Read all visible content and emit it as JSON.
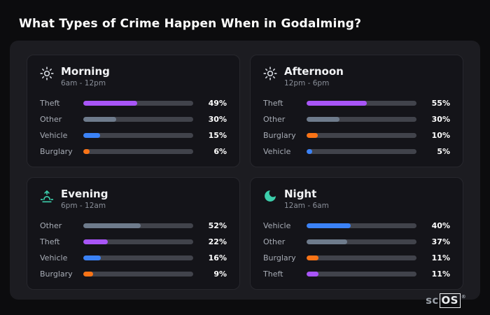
{
  "page": {
    "title": "What Types of Crime Happen When in Godalming?"
  },
  "colors": {
    "theft": "#a855f7",
    "other": "#6e7b8c",
    "vehicle": "#3b82f6",
    "burglary": "#f97316"
  },
  "chart_data": [
    {
      "type": "bar",
      "title": "Morning",
      "subtitle": "6am - 12pm",
      "icon": "sun-icon",
      "categories": [
        "Theft",
        "Other",
        "Vehicle",
        "Burglary"
      ],
      "values": [
        49,
        30,
        15,
        6
      ],
      "value_unit": "%",
      "xlim": [
        0,
        100
      ]
    },
    {
      "type": "bar",
      "title": "Afternoon",
      "subtitle": "12pm - 6pm",
      "icon": "sun-icon",
      "categories": [
        "Theft",
        "Other",
        "Burglary",
        "Vehicle"
      ],
      "values": [
        55,
        30,
        10,
        5
      ],
      "value_unit": "%",
      "xlim": [
        0,
        100
      ]
    },
    {
      "type": "bar",
      "title": "Evening",
      "subtitle": "6pm - 12am",
      "icon": "sunset-icon",
      "categories": [
        "Other",
        "Theft",
        "Vehicle",
        "Burglary"
      ],
      "values": [
        52,
        22,
        16,
        9
      ],
      "value_unit": "%",
      "xlim": [
        0,
        100
      ]
    },
    {
      "type": "bar",
      "title": "Night",
      "subtitle": "12am - 6am",
      "icon": "moon-icon",
      "categories": [
        "Vehicle",
        "Other",
        "Burglary",
        "Theft"
      ],
      "values": [
        40,
        37,
        11,
        11
      ],
      "value_unit": "%",
      "xlim": [
        0,
        100
      ]
    }
  ],
  "logo": {
    "prefix": "sc",
    "suffix": "OS",
    "registered": "®"
  }
}
